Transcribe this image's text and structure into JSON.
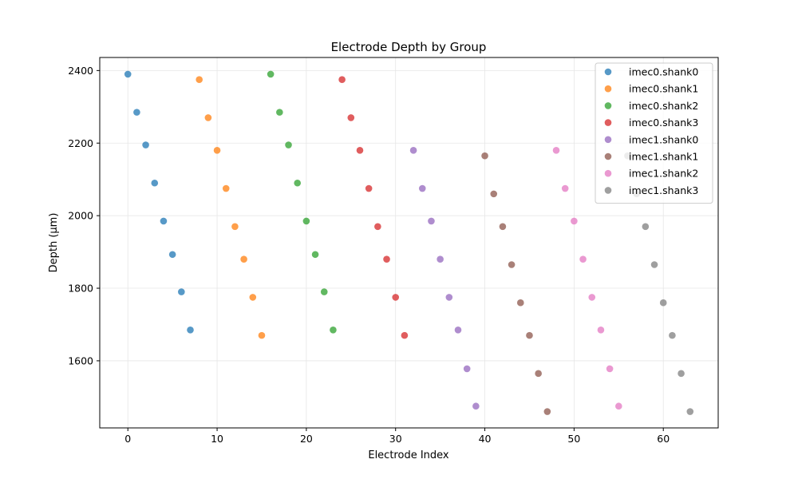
{
  "chart_data": {
    "type": "scatter",
    "title": "Electrode Depth by Group",
    "xlabel": "Electrode Index",
    "ylabel": "Depth (µm)",
    "xlim": [
      -3.15,
      66.15
    ],
    "ylim": [
      1415,
      2436
    ],
    "xticks": [
      0,
      10,
      20,
      30,
      40,
      50,
      60
    ],
    "yticks": [
      1600,
      1800,
      2000,
      2200,
      2400
    ],
    "grid": true,
    "legend_position": "top-right",
    "series": [
      {
        "name": "imec0.shank0",
        "color": "#1f77b4",
        "x": [
          0,
          1,
          2,
          3,
          4,
          5,
          6,
          7
        ],
        "y": [
          2390,
          2285,
          2195,
          2090,
          1985,
          1893,
          1790,
          1685
        ]
      },
      {
        "name": "imec0.shank1",
        "color": "#ff7f0e",
        "x": [
          8,
          9,
          10,
          11,
          12,
          13,
          14,
          15
        ],
        "y": [
          2375,
          2270,
          2180,
          2075,
          1970,
          1880,
          1775,
          1670
        ]
      },
      {
        "name": "imec0.shank2",
        "color": "#2ca02c",
        "x": [
          16,
          17,
          18,
          19,
          20,
          21,
          22,
          23
        ],
        "y": [
          2390,
          2285,
          2195,
          2090,
          1985,
          1893,
          1790,
          1685
        ]
      },
      {
        "name": "imec0.shank3",
        "color": "#d62728",
        "x": [
          24,
          25,
          26,
          27,
          28,
          29,
          30,
          31
        ],
        "y": [
          2375,
          2270,
          2180,
          2075,
          1970,
          1880,
          1775,
          1670
        ]
      },
      {
        "name": "imec1.shank0",
        "color": "#9467bd",
        "x": [
          32,
          33,
          34,
          35,
          36,
          37,
          38,
          39
        ],
        "y": [
          2180,
          2075,
          1985,
          1880,
          1775,
          1685,
          1578,
          1475
        ]
      },
      {
        "name": "imec1.shank1",
        "color": "#8c564b",
        "x": [
          40,
          41,
          42,
          43,
          44,
          45,
          46,
          47
        ],
        "y": [
          2165,
          2060,
          1970,
          1865,
          1760,
          1670,
          1565,
          1460
        ]
      },
      {
        "name": "imec1.shank2",
        "color": "#e377c2",
        "x": [
          48,
          49,
          50,
          51,
          52,
          53,
          54,
          55
        ],
        "y": [
          2180,
          2075,
          1985,
          1880,
          1775,
          1685,
          1578,
          1475
        ]
      },
      {
        "name": "imec1.shank3",
        "color": "#7f7f7f",
        "x": [
          56,
          57,
          58,
          59,
          60,
          61,
          62,
          63
        ],
        "y": [
          2165,
          2060,
          1970,
          1865,
          1760,
          1670,
          1565,
          1460
        ]
      }
    ]
  }
}
